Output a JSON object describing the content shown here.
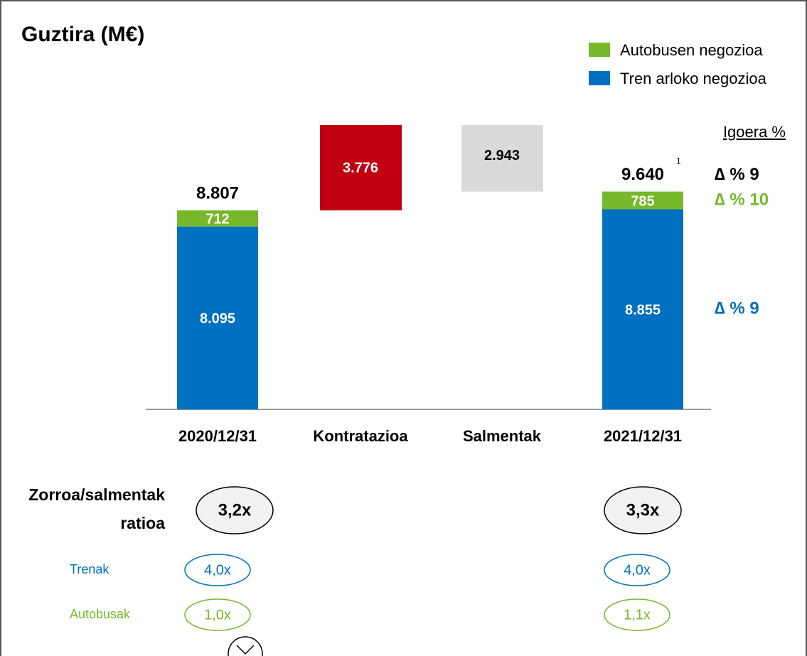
{
  "chart_data": {
    "type": "waterfall",
    "title": "Guztira (M€)",
    "categories": [
      "2020/12/31",
      "Kontratazioa",
      "Salmentak",
      "2021/12/31"
    ],
    "series": [
      {
        "name": "Tren arloko negozioa",
        "color": "#0070c0",
        "values": [
          8095,
          null,
          null,
          8855
        ],
        "value_labels": [
          "8.095",
          null,
          null,
          "8.855"
        ]
      },
      {
        "name": "Autobusen negozioa",
        "color": "#76b82a",
        "values": [
          712,
          null,
          null,
          785
        ],
        "value_labels": [
          "712",
          null,
          null,
          "785"
        ]
      }
    ],
    "totals": {
      "values": [
        8807,
        null,
        null,
        9640
      ],
      "value_labels": [
        "8.807",
        null,
        null,
        "9.640"
      ],
      "note": "1"
    },
    "changes": {
      "values": [
        null,
        3776,
        -2943,
        null
      ],
      "value_labels": [
        null,
        "3.776",
        "2.943",
        null
      ],
      "colors": [
        null,
        "#c00010",
        "#d9d9d9",
        null
      ]
    },
    "growth": {
      "title": "Igoera %",
      "labels": [
        "∆  % 9",
        "∆ % 10",
        "∆ % 9"
      ],
      "colors": [
        "#000000",
        "#76b82a",
        "#0070c0"
      ]
    },
    "legend_order": [
      1,
      0
    ]
  },
  "ratios": {
    "title_lines": [
      "Zorroa/salmentak",
      "ratioa"
    ],
    "total": [
      "3,2x",
      "3,3x"
    ],
    "rows": [
      {
        "name": "Trenak",
        "color": "#0070c0",
        "values": [
          "4,0x",
          "4,0x"
        ]
      },
      {
        "name": "Autobusak",
        "color": "#76b82a",
        "values": [
          "1,0x",
          "1,1x"
        ]
      }
    ]
  }
}
